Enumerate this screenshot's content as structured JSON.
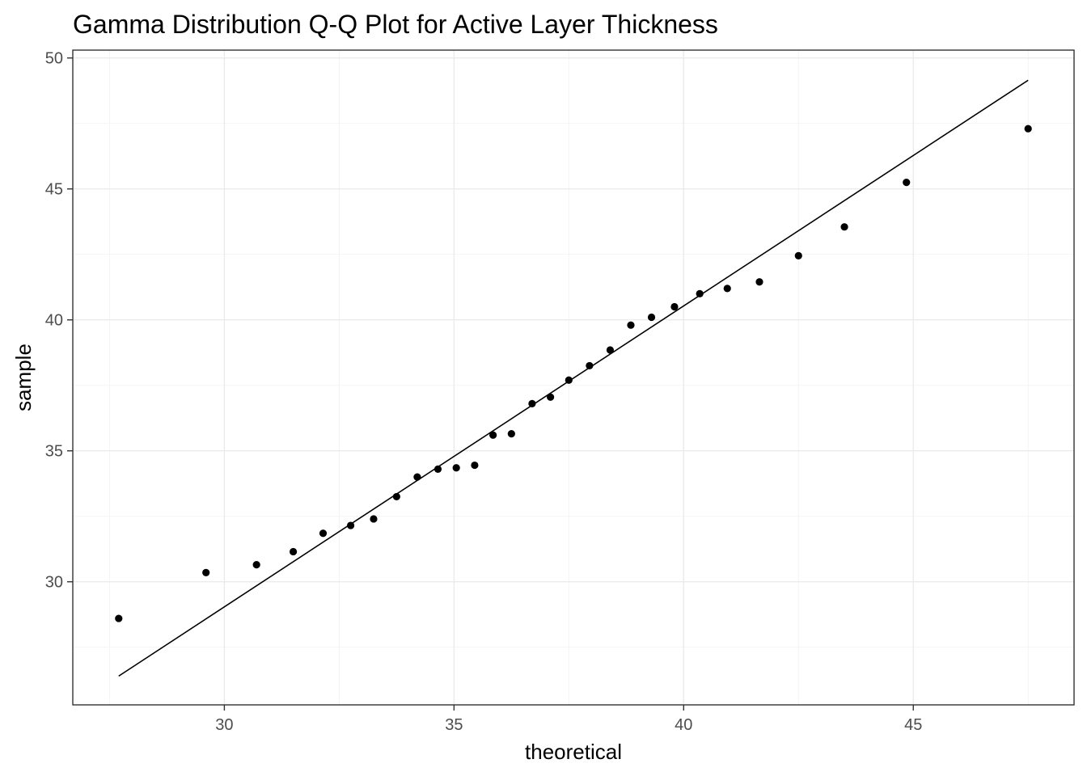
{
  "chart_data": {
    "type": "scatter",
    "title": "Gamma Distribution Q-Q Plot for Active Layer Thickness",
    "xlabel": "theoretical",
    "ylabel": "sample",
    "xlim": [
      26.7,
      48.5
    ],
    "ylim": [
      25.3,
      50.3
    ],
    "xticks": [
      30,
      35,
      40,
      45
    ],
    "yticks": [
      30,
      35,
      40,
      45,
      50
    ],
    "grid": true,
    "legend": "none",
    "colors": {
      "points": "#000000",
      "line": "#000000",
      "border": "#333333",
      "grid": "#ebebeb"
    },
    "points": {
      "x": [
        27.7,
        29.6,
        30.7,
        31.5,
        32.15,
        32.75,
        33.25,
        33.75,
        34.2,
        34.65,
        35.05,
        35.45,
        35.85,
        36.25,
        36.7,
        37.1,
        37.5,
        37.95,
        38.4,
        38.85,
        39.3,
        39.8,
        40.35,
        40.95,
        41.65,
        42.5,
        43.5,
        44.85,
        47.5
      ],
      "y": [
        28.6,
        30.35,
        30.65,
        31.15,
        31.85,
        32.15,
        32.4,
        33.25,
        34.0,
        34.3,
        34.35,
        34.45,
        35.6,
        35.65,
        36.8,
        37.05,
        37.7,
        38.25,
        38.85,
        39.8,
        40.1,
        40.5,
        41.0,
        41.2,
        41.45,
        42.45,
        43.55,
        45.25,
        47.3
      ]
    },
    "reference_line": {
      "x": [
        27.7,
        47.5
      ],
      "y": [
        26.4,
        49.15
      ]
    }
  }
}
